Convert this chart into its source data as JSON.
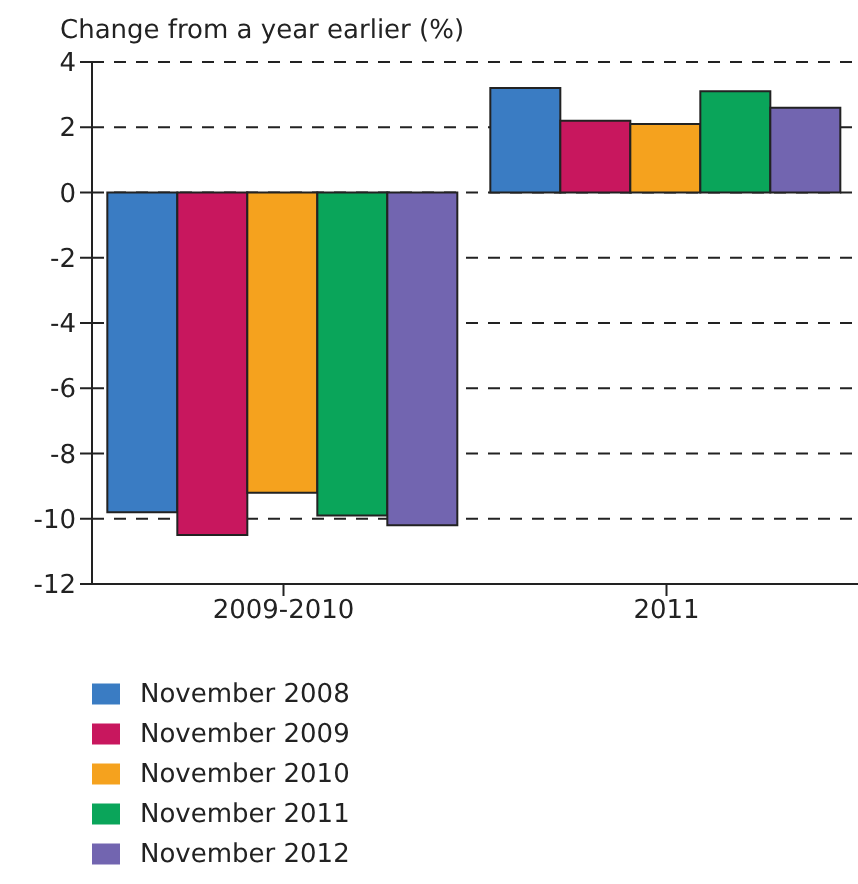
{
  "chart_data": {
    "type": "bar",
    "ylabel": "Change from a year earlier (%)",
    "categories": [
      "2009-2010",
      "2011"
    ],
    "series": [
      {
        "name": "November 2008",
        "color": "#3a7cc3",
        "values": [
          -9.8,
          3.2
        ]
      },
      {
        "name": "November 2009",
        "color": "#c8175e",
        "values": [
          -10.5,
          2.2
        ]
      },
      {
        "name": "November 2010",
        "color": "#f5a21e",
        "values": [
          -9.2,
          2.1
        ]
      },
      {
        "name": "November 2011",
        "color": "#0aa55a",
        "values": [
          -9.9,
          3.1
        ]
      },
      {
        "name": "November 2012",
        "color": "#7265b0",
        "values": [
          -10.2,
          2.6
        ]
      }
    ],
    "ylim": [
      -12,
      4
    ],
    "yticks": [
      -12,
      -10,
      -8,
      -6,
      -4,
      -2,
      0,
      2,
      4
    ],
    "grid": "y",
    "legend": "bottom"
  }
}
